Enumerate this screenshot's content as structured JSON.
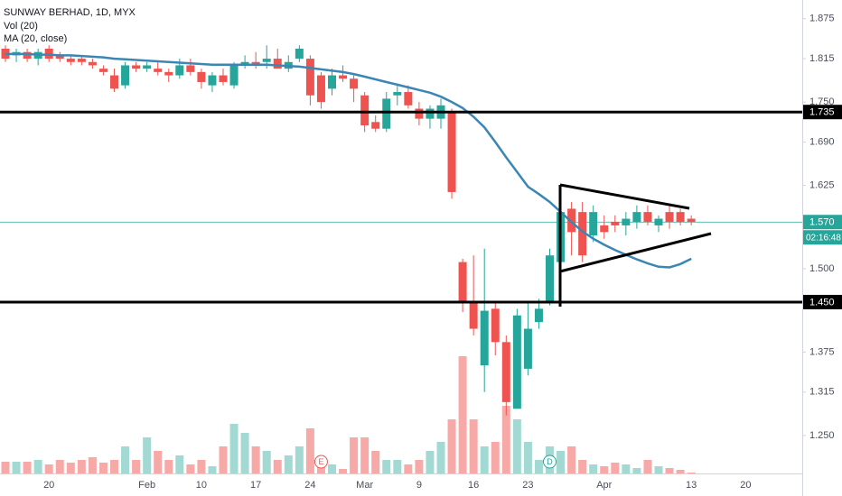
{
  "chart_data": {
    "type": "candlestick",
    "title": "SUNWAY BERHAD, 1D, MYX",
    "categories": [
      null,
      null,
      null,
      null,
      "20",
      null,
      null,
      null,
      null,
      null,
      null,
      null,
      null,
      "Feb",
      null,
      null,
      null,
      null,
      "10",
      null,
      null,
      null,
      null,
      "17",
      null,
      null,
      null,
      null,
      "24",
      null,
      null,
      null,
      null,
      "Mar",
      null,
      null,
      null,
      null,
      "9",
      null,
      null,
      null,
      null,
      "16",
      null,
      null,
      null,
      null,
      "23",
      null,
      null,
      null,
      null,
      null,
      null,
      "Apr",
      null,
      null,
      null,
      null,
      null,
      null,
      null,
      "13",
      null,
      null,
      null,
      null,
      "20"
    ],
    "open": [
      1.83,
      1.82,
      1.825,
      1.815,
      1.83,
      1.82,
      1.815,
      1.815,
      1.81,
      1.8,
      1.79,
      1.775,
      1.805,
      1.8,
      1.8,
      1.795,
      1.79,
      1.805,
      1.795,
      1.775,
      1.79,
      1.775,
      1.805,
      1.81,
      1.81,
      1.815,
      1.8,
      1.815,
      1.815,
      1.79,
      1.77,
      1.79,
      1.785,
      1.76,
      1.72,
      1.71,
      1.76,
      1.765,
      1.74,
      1.725,
      1.725,
      1.735,
      1.51,
      1.45,
      1.355,
      1.44,
      1.39,
      1.29,
      1.35,
      1.42,
      1.45,
      1.51,
      1.59,
      1.585,
      1.55,
      1.565,
      1.57,
      1.565,
      1.57,
      1.585,
      1.565,
      1.585,
      1.585,
      1.575,
      null,
      null,
      null,
      null,
      null
    ],
    "high": [
      1.835,
      1.83,
      1.83,
      1.83,
      1.835,
      1.825,
      1.82,
      1.82,
      1.815,
      1.805,
      1.8,
      1.81,
      1.81,
      1.81,
      1.81,
      1.8,
      1.815,
      1.815,
      1.8,
      1.795,
      1.8,
      1.81,
      1.82,
      1.825,
      1.835,
      1.83,
      1.82,
      1.835,
      1.82,
      1.795,
      1.8,
      1.805,
      1.79,
      1.765,
      1.73,
      1.765,
      1.775,
      1.775,
      1.75,
      1.745,
      1.755,
      1.74,
      1.515,
      1.52,
      1.53,
      1.45,
      1.4,
      1.44,
      1.45,
      1.455,
      1.53,
      1.6,
      1.6,
      1.6,
      1.595,
      1.58,
      1.58,
      1.585,
      1.595,
      1.595,
      1.58,
      1.595,
      1.59,
      1.58,
      null,
      null,
      null,
      null,
      null
    ],
    "low": [
      1.81,
      1.81,
      1.81,
      1.805,
      1.81,
      1.81,
      1.805,
      1.805,
      1.8,
      1.79,
      1.765,
      1.77,
      1.795,
      1.795,
      1.79,
      1.78,
      1.785,
      1.79,
      1.77,
      1.765,
      1.775,
      1.77,
      1.8,
      1.8,
      1.8,
      1.8,
      1.795,
      1.81,
      1.745,
      1.74,
      1.76,
      1.78,
      1.75,
      1.705,
      1.705,
      1.705,
      1.745,
      1.74,
      1.715,
      1.71,
      1.71,
      1.605,
      1.435,
      1.4,
      1.315,
      1.37,
      1.28,
      1.29,
      1.34,
      1.41,
      1.445,
      1.505,
      1.52,
      1.51,
      1.54,
      1.545,
      1.555,
      1.55,
      1.56,
      1.565,
      1.555,
      1.56,
      1.565,
      1.565,
      null,
      null,
      null,
      null,
      null
    ],
    "close": [
      1.815,
      1.825,
      1.815,
      1.825,
      1.815,
      1.815,
      1.81,
      1.81,
      1.805,
      1.795,
      1.77,
      1.805,
      1.8,
      1.805,
      1.795,
      1.79,
      1.805,
      1.795,
      1.78,
      1.79,
      1.78,
      1.805,
      1.81,
      1.805,
      1.815,
      1.8,
      1.81,
      1.83,
      1.76,
      1.75,
      1.79,
      1.785,
      1.77,
      1.715,
      1.71,
      1.755,
      1.765,
      1.745,
      1.725,
      1.74,
      1.745,
      1.615,
      1.45,
      1.41,
      1.437,
      1.39,
      1.3,
      1.43,
      1.41,
      1.44,
      1.52,
      1.585,
      1.555,
      1.52,
      1.585,
      1.555,
      1.565,
      1.575,
      1.585,
      1.57,
      1.575,
      1.57,
      1.57,
      1.57,
      null,
      null,
      null,
      null,
      null
    ],
    "up_color": "#26a69a",
    "down_color": "#ef5350",
    "volume": {
      "name": "Vol (20)",
      "up_color": "#a3d9d3",
      "down_color": "#f7a9a7",
      "ylim": [
        0,
        525
      ],
      "values": [
        13,
        13,
        13,
        15,
        10,
        15,
        12,
        15,
        18,
        12,
        15,
        30,
        15,
        40,
        25,
        15,
        20,
        10,
        15,
        8,
        30,
        55,
        45,
        30,
        25,
        15,
        20,
        30,
        50,
        15,
        10,
        5,
        40,
        40,
        25,
        15,
        15,
        10,
        15,
        25,
        35,
        60,
        130,
        60,
        30,
        35,
        75,
        60,
        35,
        15,
        30,
        25,
        30,
        15,
        10,
        8,
        12,
        10,
        6,
        15,
        8,
        6,
        4,
        1,
        null,
        null,
        null,
        null,
        null
      ]
    },
    "ma": {
      "name": "MA (20, close)",
      "color": "#3b86b3",
      "values": [
        1.822,
        1.822,
        1.822,
        1.821,
        1.821,
        1.82,
        1.82,
        1.819,
        1.818,
        1.817,
        1.815,
        1.814,
        1.813,
        1.812,
        1.811,
        1.81,
        1.809,
        1.808,
        1.807,
        1.806,
        1.806,
        1.806,
        1.806,
        1.806,
        1.806,
        1.805,
        1.804,
        1.803,
        1.801,
        1.799,
        1.797,
        1.795,
        1.792,
        1.788,
        1.784,
        1.78,
        1.776,
        1.772,
        1.768,
        1.764,
        1.758,
        1.75,
        1.741,
        1.728,
        1.712,
        1.69,
        1.667,
        1.645,
        1.623,
        1.612,
        1.6,
        1.585,
        1.57,
        1.556,
        1.545,
        1.536,
        1.528,
        1.521,
        1.514,
        1.508,
        1.503,
        1.502,
        1.507,
        1.515,
        null,
        null,
        null,
        null,
        null
      ]
    },
    "ylim": [
      1.193,
      1.903
    ],
    "yticks": [
      1.875,
      1.815,
      {
        "value": 1.75,
        "label": "1.750"
      },
      {
        "value": 1.69,
        "label": "1.690"
      },
      1.625,
      {
        "value": 1.5,
        "label": "1.500"
      },
      1.375,
      1.315,
      {
        "value": 1.25,
        "label": "1.250"
      }
    ],
    "levels": [
      {
        "value": 1.735,
        "label": "1.735",
        "color": "#000000"
      },
      {
        "value": 1.45,
        "label": "1.450",
        "color": "#000000"
      }
    ],
    "last_price": {
      "value": 1.57,
      "label": "1.570",
      "countdown": "02:16:48",
      "color": "#26a69a"
    },
    "events": [
      {
        "label": "E",
        "color": "#ef5350"
      },
      {
        "label": "D",
        "color": "#26a69a"
      }
    ]
  }
}
